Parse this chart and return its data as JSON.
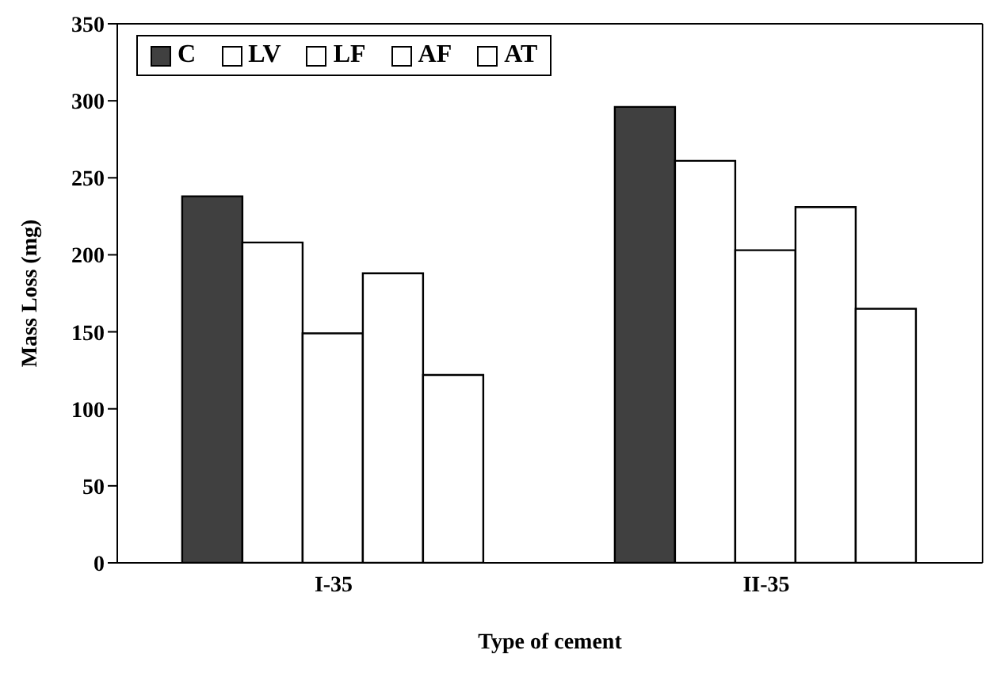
{
  "chart_data": {
    "type": "bar",
    "xlabel": "Type of cement",
    "ylabel": "Mass Loss (mg)",
    "categories": [
      "I-35",
      "II-35"
    ],
    "series": [
      {
        "name": "C",
        "color": "#404040",
        "values": [
          238,
          296
        ]
      },
      {
        "name": "LV",
        "color": "#ffffff",
        "values": [
          208,
          261
        ]
      },
      {
        "name": "LF",
        "color": "#ffffff",
        "values": [
          149,
          203
        ]
      },
      {
        "name": "AF",
        "color": "#ffffff",
        "values": [
          188,
          231
        ]
      },
      {
        "name": "AT",
        "color": "#ffffff",
        "values": [
          122,
          165
        ]
      }
    ],
    "ylim": [
      0,
      350
    ],
    "yticks": [
      0,
      50,
      100,
      150,
      200,
      250,
      300,
      350
    ],
    "legend": "top left",
    "grid": false
  }
}
